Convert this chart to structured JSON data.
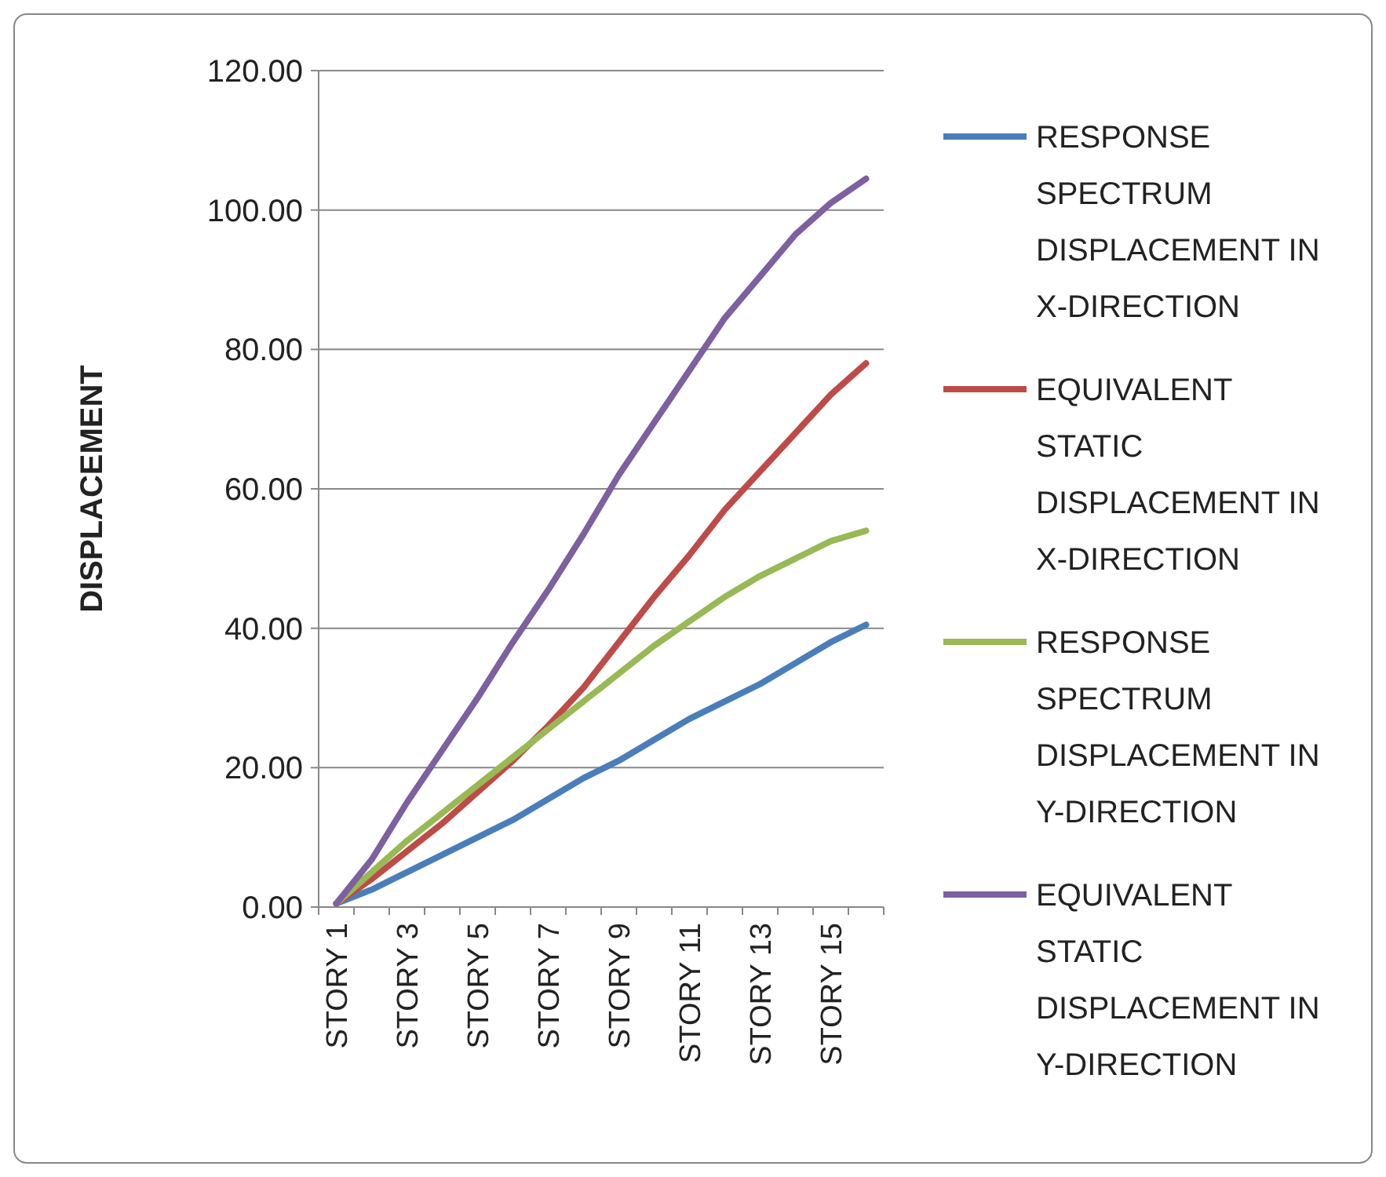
{
  "chart_data": {
    "type": "line",
    "ylabel": "DISPLACEMENT",
    "categories": [
      "STORY 1",
      null,
      "STORY 3",
      null,
      "STORY 5",
      null,
      "STORY 7",
      null,
      "STORY 9",
      null,
      "STORY 11",
      null,
      "STORY 13",
      null,
      "STORY 15",
      null
    ],
    "series": [
      {
        "name": "RESPONSE SPECTRUM DISPLACEMENT IN X-DIRECTION",
        "color": "#4a7ebb",
        "values": [
          0.5,
          2.5,
          5,
          7.5,
          10,
          12.5,
          15.5,
          18.5,
          21,
          24,
          27,
          29.5,
          32,
          35,
          38,
          40.5
        ]
      },
      {
        "name": "EQUIVALENT STATIC DISPLACEMENT IN X-DIRECTION",
        "color": "#be4b48",
        "values": [
          0.5,
          4,
          8,
          12,
          16.5,
          21,
          26,
          31.5,
          38,
          44.5,
          50.5,
          57,
          62.5,
          68,
          73.5,
          78
        ]
      },
      {
        "name": "RESPONSE SPECTRUM DISPLACEMENT IN Y-DIRECTION",
        "color": "#98b954",
        "values": [
          0.5,
          5,
          9.5,
          13.5,
          17.5,
          21.5,
          25.5,
          29.5,
          33.5,
          37.5,
          41,
          44.5,
          47.5,
          50,
          52.5,
          54
        ]
      },
      {
        "name": "EQUIVALENT STATIC DISPLACEMENT IN Y-DIRECTION",
        "color": "#7d60a0",
        "values": [
          0.5,
          6.8,
          15,
          22.5,
          30,
          38,
          45.5,
          53.5,
          62,
          69.5,
          77,
          84.5,
          90.5,
          96.5,
          101,
          104.5
        ]
      }
    ],
    "ylim": [
      0,
      120
    ],
    "yticks": [
      {
        "value": 0,
        "label": "0.00"
      },
      {
        "value": 20,
        "label": "20.00"
      },
      {
        "value": 40,
        "label": "40.00"
      },
      {
        "value": 60,
        "label": "60.00"
      },
      {
        "value": 80,
        "label": "80.00"
      },
      {
        "value": 100,
        "label": "100.00"
      },
      {
        "value": 120,
        "label": "120.00"
      }
    ],
    "grid": "y",
    "legend": "right",
    "marker": "none",
    "line_style": "solid"
  }
}
